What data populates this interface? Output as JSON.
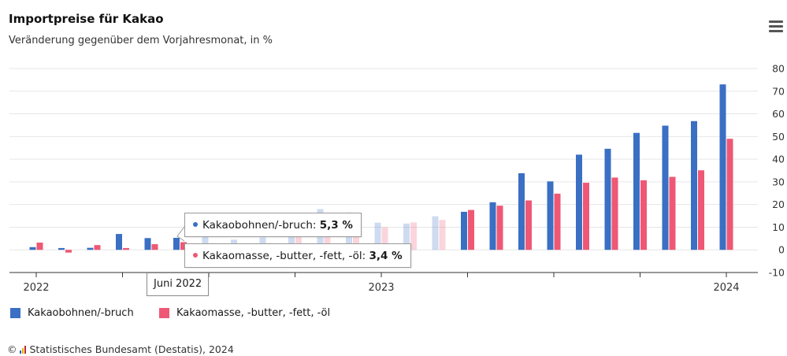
{
  "header": {
    "title": "Importpreise für Kakao",
    "subtitle": "Veränderung gegenüber dem Vorjahresmonat, in %"
  },
  "colors": {
    "bohnen": "#3a6fc4",
    "masse": "#ee5875",
    "grid": "#e6e6e6",
    "axis": "#333333"
  },
  "legend": {
    "item1": "Kakaobohnen/-bruch",
    "item2": "Kakaomasse, -butter, -fett, -öl"
  },
  "tooltip": {
    "x_label": "Juni 2022",
    "row1_name": "Kakaobohnen/-bruch",
    "row1_value": "5,3 %",
    "row2_name": "Kakaomasse, -butter, -fett, -öl",
    "row2_value": "3,4 %"
  },
  "credit": {
    "symbol": "©",
    "text": "Statistisches Bundesamt (Destatis), 2024"
  },
  "chart_data": {
    "type": "bar",
    "title": "Importpreise für Kakao",
    "subtitle": "Veränderung gegenüber dem Vorjahresmonat, in %",
    "xlabel": "",
    "ylabel": "",
    "ylim": [
      -10,
      80
    ],
    "yticks": [
      -10,
      0,
      10,
      20,
      30,
      40,
      50,
      60,
      70,
      80
    ],
    "x_tick_labels": [
      "2022",
      "2023",
      "2024"
    ],
    "grid": true,
    "legend_position": "bottom-left",
    "categories": [
      "Jan 2022",
      "Feb 2022",
      "Mär 2022",
      "Apr 2022",
      "Mai 2022",
      "Juni 2022",
      "Jul 2022",
      "Aug 2022",
      "Sep 2022",
      "Okt 2022",
      "Nov 2022",
      "Dez 2022",
      "Jan 2023",
      "Feb 2023",
      "Mär 2023",
      "Apr 2023",
      "Mai 2023",
      "Jun 2023",
      "Jul 2023",
      "Aug 2023",
      "Sep 2023",
      "Okt 2023",
      "Nov 2023",
      "Dez 2023",
      "Jan 2024"
    ],
    "series": [
      {
        "name": "Kakaobohnen/-bruch",
        "values": [
          1.2,
          0.8,
          0.9,
          7.0,
          5.2,
          5.3,
          6.0,
          4.5,
          5.5,
          8.0,
          18.0,
          16.5,
          12.0,
          11.6,
          14.8,
          16.8,
          21.0,
          33.8,
          30.2,
          42.0,
          44.6,
          51.6,
          54.8,
          56.8,
          73.0
        ]
      },
      {
        "name": "Kakaomasse, -butter, -fett, -öl",
        "values": [
          3.2,
          -1.2,
          2.1,
          0.8,
          2.5,
          3.4,
          3.0,
          2.5,
          3.0,
          6.0,
          10.5,
          12.0,
          10.0,
          12.1,
          13.2,
          17.6,
          19.5,
          21.8,
          24.8,
          29.6,
          31.9,
          30.7,
          32.2,
          35.1,
          49.0
        ]
      }
    ]
  }
}
